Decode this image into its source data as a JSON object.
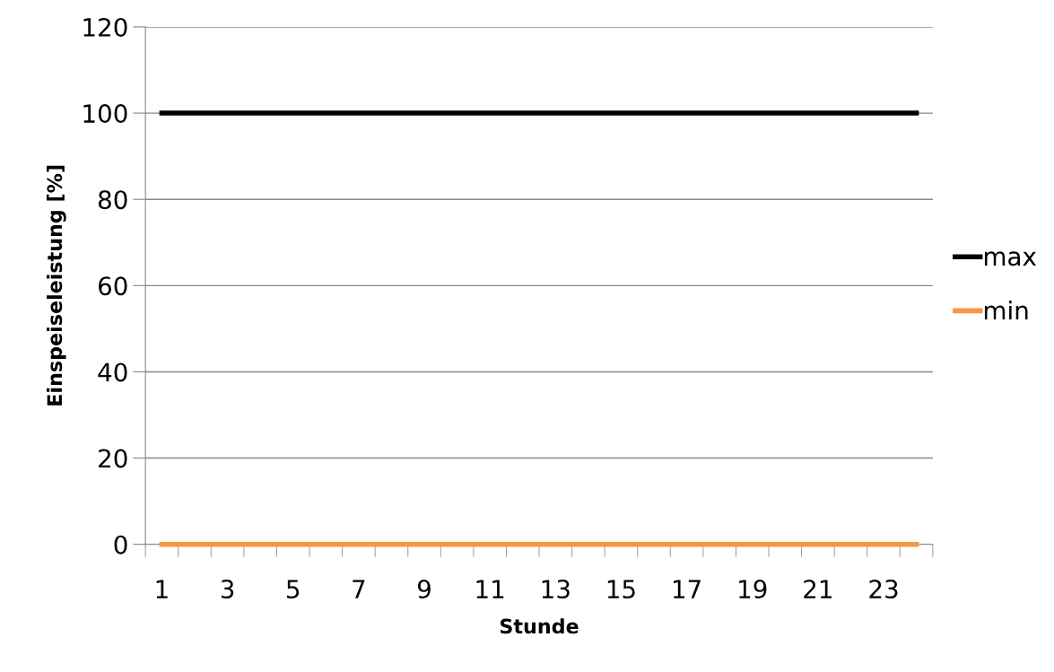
{
  "chart_data": {
    "type": "line",
    "xlabel": "Stunde",
    "ylabel": "Einspeiseleistung [%]",
    "categories": [
      "1",
      null,
      "3",
      null,
      "5",
      null,
      "7",
      null,
      "9",
      null,
      "11",
      null,
      "13",
      null,
      "15",
      null,
      "17",
      null,
      "19",
      null,
      "21",
      null,
      "23",
      null
    ],
    "series": [
      {
        "name": "max",
        "color": "#000000",
        "values": [
          100,
          100,
          100,
          100,
          100,
          100,
          100,
          100,
          100,
          100,
          100,
          100,
          100,
          100,
          100,
          100,
          100,
          100,
          100,
          100,
          100,
          100,
          100,
          100
        ]
      },
      {
        "name": "min",
        "color": "#f79646",
        "values": [
          0,
          0,
          0,
          0,
          0,
          0,
          0,
          0,
          0,
          0,
          0,
          0,
          0,
          0,
          0,
          0,
          0,
          0,
          0,
          0,
          0,
          0,
          0,
          0
        ]
      }
    ],
    "ylim": [
      0,
      120
    ],
    "yticks": [
      0,
      20,
      40,
      60,
      80,
      100,
      120
    ],
    "grid": "y",
    "legend": "right",
    "marker": "none",
    "line_style": "solid"
  }
}
